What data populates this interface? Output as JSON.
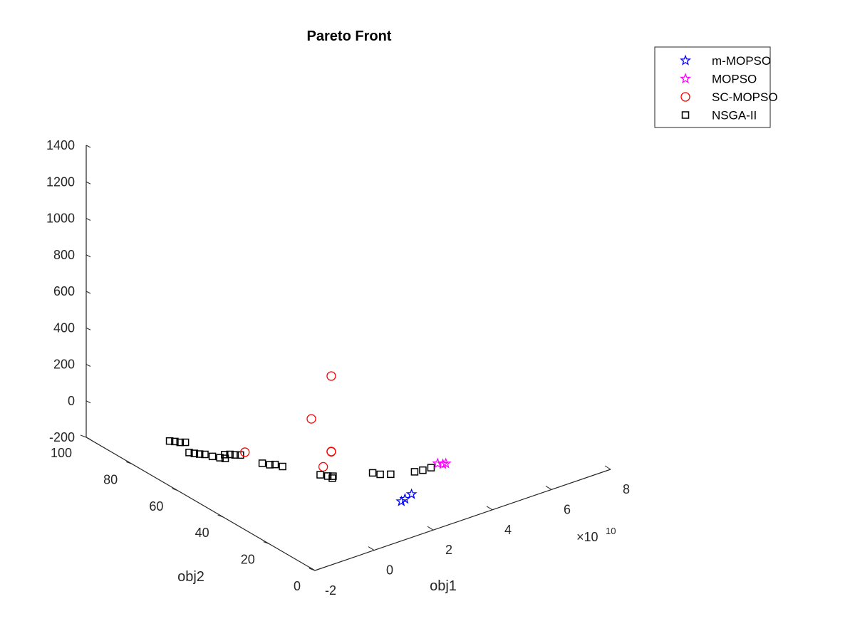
{
  "chart_data": {
    "type": "scatter",
    "title": "Pareto Front",
    "xlabel": "obj1",
    "ylabel": "obj2",
    "zlabel": "",
    "x_exponent_label": "×10",
    "x_exponent_power": "10",
    "xlim": [
      -2,
      8
    ],
    "ylim": [
      0,
      100
    ],
    "zlim": [
      -200,
      1400
    ],
    "x_ticks": [
      "-2",
      "0",
      "2",
      "4",
      "6",
      "8"
    ],
    "y_ticks": [
      "0",
      "20",
      "40",
      "60",
      "80",
      "100"
    ],
    "z_ticks": [
      "-200",
      "0",
      "200",
      "400",
      "600",
      "800",
      "1000",
      "1200",
      "1400"
    ],
    "grid": false,
    "legend_position": "top-right",
    "series": [
      {
        "name": "m-MOPSO",
        "marker": "pentagram",
        "color": "#0000ff",
        "points": [
          [
            1.2,
            2,
            0
          ],
          [
            1.5,
            3,
            2
          ],
          [
            1.0,
            1,
            5
          ]
        ]
      },
      {
        "name": "MOPSO",
        "marker": "pentagram",
        "color": "#ff00ff",
        "points": [
          [
            3.1,
            10,
            27
          ],
          [
            3.0,
            11,
            29
          ],
          [
            3.2,
            10,
            25
          ]
        ]
      },
      {
        "name": "SC-MOPSO",
        "marker": "circle",
        "color": "#ff0000",
        "points": [
          [
            0.1,
            20,
            603
          ],
          [
            0.2,
            30,
            290
          ],
          [
            0.1,
            20,
            188
          ],
          [
            0.1,
            20,
            190
          ],
          [
            -0.5,
            50,
            0
          ],
          [
            0.6,
            30,
            5
          ]
        ]
      },
      {
        "name": "NSGA-II",
        "marker": "square",
        "color": "#000000",
        "points": [
          [
            -2.0,
            55,
            45
          ],
          [
            -1.9,
            54,
            42
          ],
          [
            -1.8,
            53,
            40
          ],
          [
            -1.7,
            52,
            40
          ],
          [
            -1.6,
            50,
            38
          ],
          [
            -1.5,
            48,
            40
          ],
          [
            -1.4,
            47,
            38
          ],
          [
            -1.5,
            70,
            -29
          ],
          [
            -1.4,
            69,
            -30
          ],
          [
            -1.3,
            68,
            -33
          ],
          [
            -1.2,
            67,
            -31
          ],
          [
            -0.8,
            55,
            -33
          ],
          [
            -0.7,
            54,
            -30
          ],
          [
            -0.6,
            53,
            -31
          ],
          [
            -0.5,
            52,
            -30
          ],
          [
            -0.3,
            45,
            -35
          ],
          [
            -0.2,
            43,
            -34
          ],
          [
            -0.1,
            42,
            -31
          ],
          [
            0.0,
            40,
            -33
          ],
          [
            0.5,
            30,
            -33
          ],
          [
            0.6,
            28,
            -31
          ],
          [
            0.7,
            27,
            -30
          ],
          [
            0.6,
            26,
            -28
          ],
          [
            1.5,
            20,
            -5
          ],
          [
            1.6,
            18,
            -4
          ],
          [
            1.8,
            16,
            0
          ],
          [
            2.3,
            12,
            15
          ],
          [
            2.5,
            11,
            20
          ],
          [
            2.7,
            10,
            30
          ]
        ]
      }
    ]
  }
}
